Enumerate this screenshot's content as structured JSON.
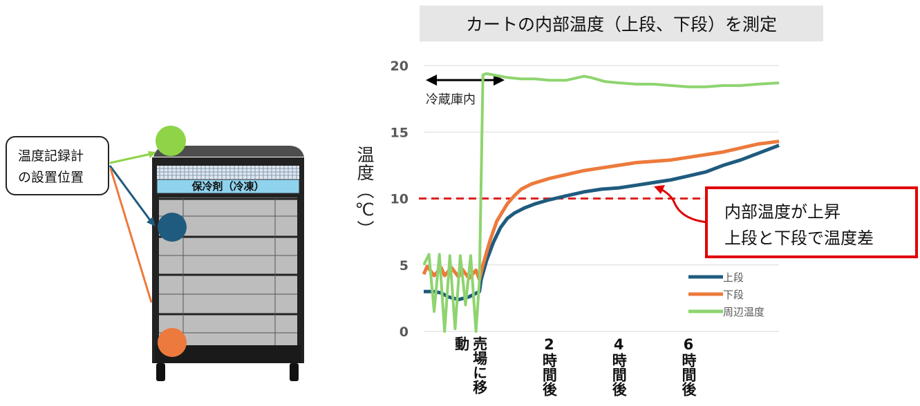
{
  "cart": {
    "callout_lines": [
      "温度記録計",
      "の設置位置"
    ],
    "coolant_label": "保冷剤（冷凍）"
  },
  "chart_data": {
    "type": "line",
    "title": "カートの内部温度（上段、下段）を測定",
    "ylabel": "温度（℃）",
    "xlabel": "",
    "ylim": [
      0,
      21
    ],
    "yticks": [
      0,
      5,
      10,
      15,
      20
    ],
    "x_unit": "hours",
    "xlim": [
      -1.6,
      8.6
    ],
    "x_tick_labels": [
      {
        "x": 0,
        "label": "売場に移動"
      },
      {
        "x": 2,
        "label": "2時間後"
      },
      {
        "x": 4,
        "label": "4時間後"
      },
      {
        "x": 6,
        "label": "6時間後"
      }
    ],
    "threshold": {
      "y": 10,
      "style": "dashed",
      "color": "#e02020"
    },
    "annotation_in_fridge": "冷蔵庫内",
    "annotation_note": [
      "内部温度が上昇",
      "上段と下段で温度差"
    ],
    "legend_position": "bottom-right",
    "series": [
      {
        "name": "上段",
        "color": "#1f5b7e",
        "x": [
          -1.6,
          -1.3,
          -1.1,
          -0.9,
          -0.6,
          -0.3,
          0.0,
          0.05,
          0.2,
          0.4,
          0.6,
          0.8,
          1.0,
          1.3,
          1.6,
          2.0,
          2.5,
          3.0,
          3.5,
          4.0,
          4.5,
          5.0,
          5.5,
          6.0,
          6.5,
          7.0,
          7.5,
          8.0,
          8.6
        ],
        "values": [
          3.0,
          3.0,
          2.9,
          2.6,
          2.4,
          2.6,
          3.0,
          3.9,
          5.3,
          6.7,
          7.8,
          8.5,
          8.9,
          9.3,
          9.6,
          9.9,
          10.2,
          10.5,
          10.7,
          10.8,
          11.0,
          11.2,
          11.4,
          11.7,
          12.0,
          12.5,
          12.9,
          13.4,
          14.0
        ]
      },
      {
        "name": "下段",
        "color": "#ec7a3c",
        "x": [
          -1.6,
          -1.5,
          -1.3,
          -1.1,
          -1.0,
          -0.8,
          -0.6,
          -0.5,
          -0.3,
          -0.1,
          0.0,
          0.1,
          0.3,
          0.5,
          0.8,
          1.0,
          1.2,
          1.5,
          2.0,
          2.5,
          3.0,
          3.5,
          4.0,
          4.5,
          5.0,
          5.5,
          6.0,
          6.5,
          7.0,
          7.5,
          8.0,
          8.6
        ],
        "values": [
          4.3,
          4.9,
          4.2,
          4.8,
          4.2,
          4.8,
          4.1,
          4.7,
          4.0,
          4.6,
          3.9,
          5.0,
          6.8,
          8.3,
          9.6,
          10.2,
          10.7,
          11.1,
          11.5,
          11.8,
          12.1,
          12.3,
          12.5,
          12.7,
          12.8,
          12.9,
          13.1,
          13.3,
          13.5,
          13.8,
          14.1,
          14.3
        ]
      },
      {
        "name": "周辺温度",
        "color": "#8ed46f",
        "x": [
          -1.6,
          -1.45,
          -1.3,
          -1.15,
          -1.0,
          -0.85,
          -0.7,
          -0.55,
          -0.4,
          -0.25,
          -0.1,
          0.0,
          0.1,
          0.2,
          0.4,
          0.8,
          1.2,
          1.6,
          2.0,
          2.5,
          3.0,
          3.2,
          3.6,
          4.0,
          4.5,
          5.0,
          5.5,
          6.0,
          6.5,
          7.0,
          7.5,
          8.0,
          8.6
        ],
        "values": [
          5.0,
          5.8,
          1.5,
          5.8,
          0.0,
          5.7,
          0.2,
          5.7,
          2.0,
          5.7,
          0.0,
          3.8,
          19.3,
          19.4,
          19.3,
          19.1,
          19.0,
          19.0,
          18.9,
          18.9,
          19.2,
          19.1,
          18.8,
          18.7,
          18.6,
          18.6,
          18.5,
          18.4,
          18.4,
          18.5,
          18.5,
          18.6,
          18.7
        ]
      }
    ]
  }
}
